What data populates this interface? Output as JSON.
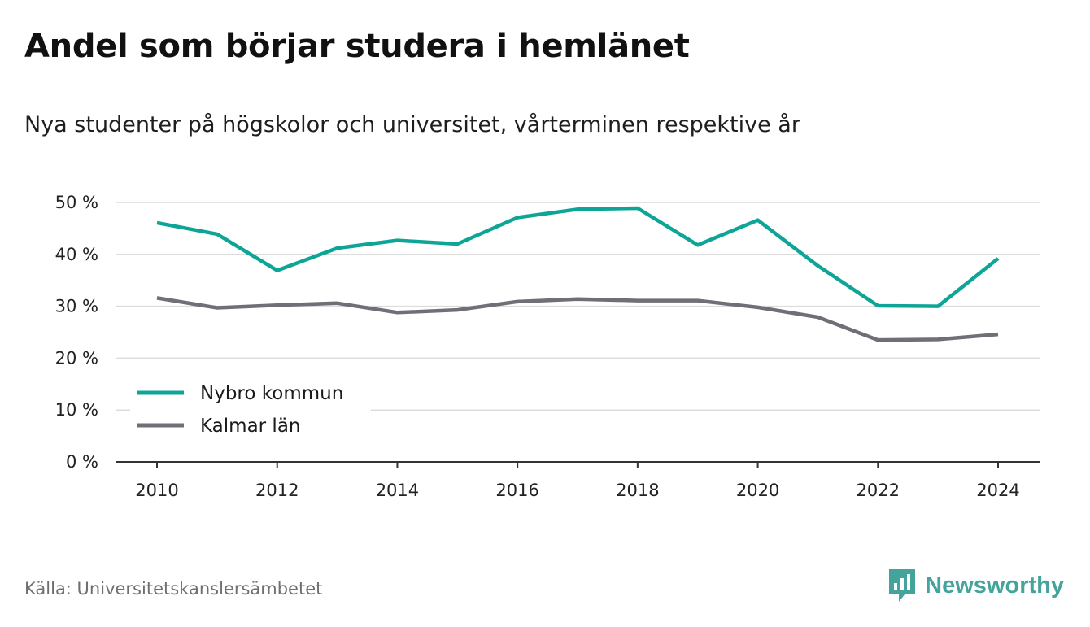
{
  "header": {
    "title": "Andel som börjar studera i hemlänet",
    "subtitle": "Nya studenter på högskolor och universitet, vårterminen respektive år"
  },
  "footer": {
    "source": "Källa: Universitetskanslersämbetet",
    "brand": "Newsworthy",
    "brand_icon": "newsworthy-logo-icon",
    "brand_color": "#44a39b"
  },
  "chart_data": {
    "type": "line",
    "title": "Andel som börjar studera i hemlänet",
    "subtitle": "Nya studenter på högskolor och universitet, vårterminen respektive år",
    "xlabel": "",
    "ylabel": "",
    "x": [
      2010,
      2011,
      2012,
      2013,
      2014,
      2015,
      2016,
      2017,
      2018,
      2019,
      2020,
      2021,
      2022,
      2023,
      2024
    ],
    "xticks": [
      "2010",
      "2012",
      "2014",
      "2016",
      "2018",
      "2020",
      "2022",
      "2024"
    ],
    "yticks": [
      "0 %",
      "10 %",
      "20 %",
      "30 %",
      "40 %",
      "50 %"
    ],
    "ylim": [
      0,
      50
    ],
    "grid": true,
    "legend_position": "bottom-left",
    "series": [
      {
        "name": "Nybro kommun",
        "color": "#0fa596",
        "values": [
          46.1,
          43.9,
          36.9,
          41.2,
          42.7,
          42.0,
          47.1,
          48.7,
          48.9,
          41.8,
          46.6,
          37.8,
          30.1,
          30.0,
          39.2
        ]
      },
      {
        "name": "Kalmar län",
        "color": "#706e76",
        "values": [
          31.6,
          29.7,
          30.2,
          30.6,
          28.8,
          29.3,
          30.9,
          31.4,
          31.1,
          31.1,
          29.8,
          27.9,
          23.5,
          23.6,
          24.6
        ]
      }
    ]
  }
}
